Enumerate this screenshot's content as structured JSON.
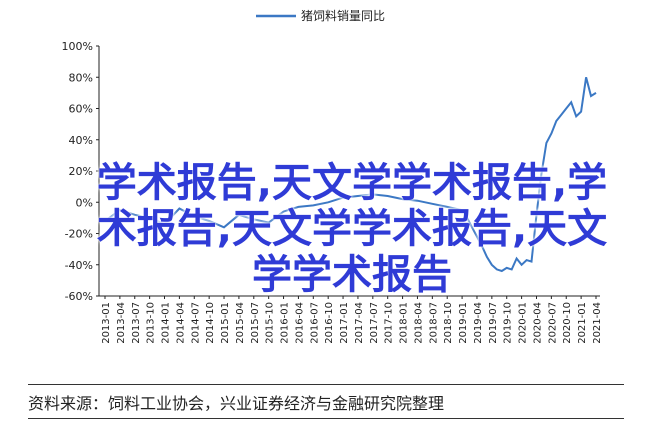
{
  "chart_data": {
    "type": "line",
    "title": "",
    "legend": {
      "entries": [
        "猪饲料销量同比"
      ],
      "placement": "top"
    },
    "ylim": [
      -60,
      100
    ],
    "yticks": [
      "100%",
      "80%",
      "60%",
      "40%",
      "20%",
      "0%",
      "-20%",
      "-40%",
      "-60%"
    ],
    "xticks": [
      "2013-01",
      "2013-04",
      "2013-07",
      "2013-10",
      "2014-01",
      "2014-04",
      "2014-07",
      "2014-10",
      "2015-01",
      "2015-04",
      "2015-07",
      "2015-10",
      "2016-01",
      "2016-04",
      "2016-07",
      "2016-10",
      "2017-01",
      "2017-04",
      "2017-07",
      "2017-10",
      "2018-01",
      "2018-04",
      "2018-07",
      "2018-10",
      "2019-01",
      "2019-04",
      "2019-07",
      "2019-10",
      "2020-01",
      "2020-04",
      "2020-07",
      "2020-10",
      "2021-01",
      "2021-04"
    ],
    "series": [
      {
        "name": "猪饲料销量同比",
        "color": "#3b78c4",
        "x": [
          "2013-01",
          "2013-04",
          "2013-07",
          "2013-10",
          "2014-01",
          "2014-04",
          "2014-07",
          "2014-10",
          "2015-01",
          "2015-04",
          "2015-07",
          "2015-10",
          "2016-01",
          "2016-04",
          "2016-07",
          "2016-10",
          "2017-01",
          "2017-04",
          "2017-07",
          "2017-10",
          "2018-01",
          "2018-04",
          "2018-07",
          "2018-10",
          "2019-01",
          "2019-02",
          "2019-03",
          "2019-04",
          "2019-05",
          "2019-06",
          "2019-07",
          "2019-08",
          "2019-09",
          "2019-10",
          "2019-11",
          "2019-12",
          "2020-01",
          "2020-02",
          "2020-03",
          "2020-04",
          "2020-05",
          "2020-06",
          "2020-07",
          "2020-08",
          "2020-09",
          "2020-10",
          "2020-11",
          "2020-12",
          "2021-01",
          "2021-02",
          "2021-03",
          "2021-04"
        ],
        "values": [
          -12,
          -5,
          -8,
          -10,
          -14,
          -4,
          -9,
          -12,
          -16,
          -8,
          -11,
          -13,
          -6,
          -3,
          -2,
          0,
          3,
          4,
          5,
          4,
          2,
          1,
          -1,
          -3,
          -5,
          -10,
          -16,
          -22,
          -28,
          -35,
          -40,
          -43,
          -44,
          -42,
          -43,
          -36,
          -40,
          -37,
          -38,
          -8,
          18,
          38,
          44,
          52,
          56,
          60,
          64,
          55,
          58,
          80,
          68,
          70
        ]
      }
    ]
  },
  "overlay_text": "学术报告,天文学学术报告,学术报告,天文学学术报告,天文学学术报告",
  "source_text": "资料来源：饲料工业协会，兴业证券经济与金融研究院整理"
}
